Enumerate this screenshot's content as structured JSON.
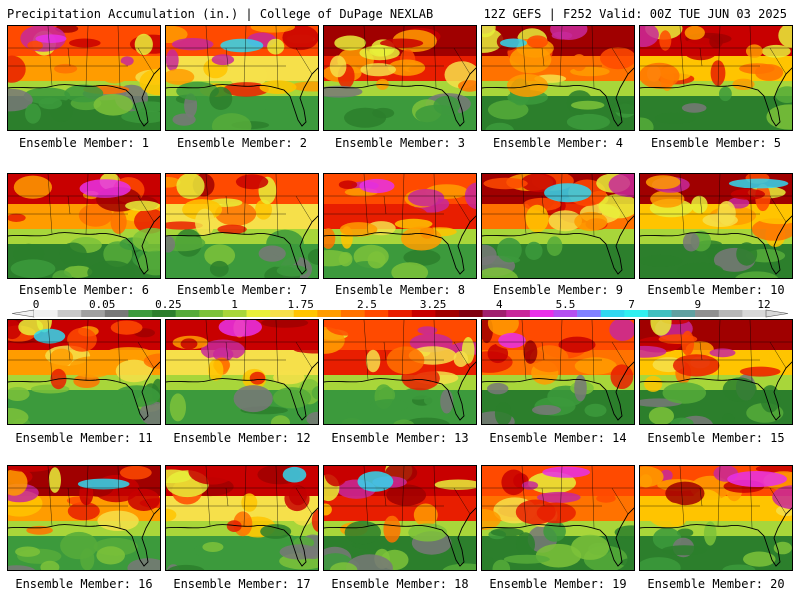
{
  "header": {
    "left": "Precipitation Accumulation (in.) | College of DuPage NEXLAB",
    "right": "12Z GEFS | F252 Valid: 00Z TUE JUN 03 2025"
  },
  "members": [
    {
      "label": "Ensemble Member: 1",
      "level": 0.55
    },
    {
      "label": "Ensemble Member: 2",
      "level": 0.55
    },
    {
      "label": "Ensemble Member: 3",
      "level": 0.5
    },
    {
      "label": "Ensemble Member: 4",
      "level": 0.55
    },
    {
      "label": "Ensemble Member: 5",
      "level": 0.5
    },
    {
      "label": "Ensemble Member: 6",
      "level": 0.6
    },
    {
      "label": "Ensemble Member: 7",
      "level": 0.5
    },
    {
      "label": "Ensemble Member: 8",
      "level": 0.55
    },
    {
      "label": "Ensemble Member: 9",
      "level": 0.65
    },
    {
      "label": "Ensemble Member: 10",
      "level": 0.55
    },
    {
      "label": "Ensemble Member: 11",
      "level": 0.55
    },
    {
      "label": "Ensemble Member: 12",
      "level": 0.55
    },
    {
      "label": "Ensemble Member: 13",
      "level": 0.45
    },
    {
      "label": "Ensemble Member: 14",
      "level": 0.6
    },
    {
      "label": "Ensemble Member: 15",
      "level": 0.5
    },
    {
      "label": "Ensemble Member: 16",
      "level": 0.6
    },
    {
      "label": "Ensemble Member: 17",
      "level": 0.55
    },
    {
      "label": "Ensemble Member: 18",
      "level": 0.6
    },
    {
      "label": "Ensemble Member: 19",
      "level": 0.6
    },
    {
      "label": "Ensemble Member: 20",
      "level": 0.6
    }
  ],
  "colorbar": {
    "tick_labels": [
      "0",
      "0.05",
      "0.25",
      "1",
      "1.75",
      "2.5",
      "3.25",
      "4",
      "5.5",
      "7",
      "9",
      "12"
    ],
    "colors": [
      "#f0f0f0",
      "#c8c8c8",
      "#a0a0a0",
      "#787878",
      "#3c9a3c",
      "#2c7f2c",
      "#56ab3a",
      "#7cc23a",
      "#a8d63a",
      "#e8f03a",
      "#f6e04a",
      "#ffc400",
      "#ff9c00",
      "#ff7200",
      "#ff4a00",
      "#e81e00",
      "#c80000",
      "#a00000",
      "#800010",
      "#a0206e",
      "#c8289a",
      "#e830e8",
      "#b450f0",
      "#8080ff",
      "#30d8f0",
      "#30f0f0",
      "#40c0c0",
      "#60a0a0",
      "#909090",
      "#b8b8b8",
      "#d8d8d8"
    ]
  }
}
